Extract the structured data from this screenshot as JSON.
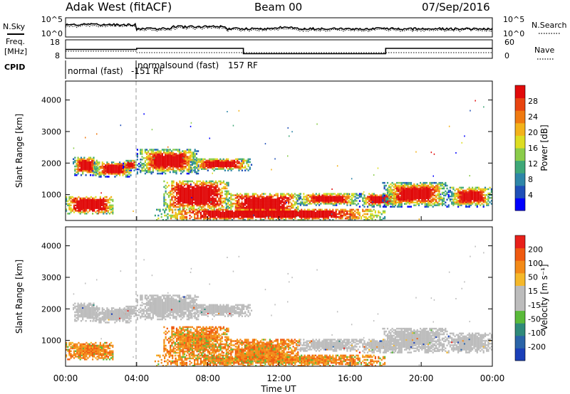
{
  "header": {
    "station": "Adak West (fitACF)",
    "beam": "Beam 00",
    "date": "07/Sep/2016"
  },
  "left_labels": {
    "nsky": "N.Sky",
    "freq_line1": "Freq.",
    "freq_line2": "[MHz]",
    "cpid": "CPID"
  },
  "right_labels": {
    "nsearch": "N.Search",
    "nave": "Nave"
  },
  "cpid_programs": [
    {
      "name": "normal (fast)",
      "code": "-151 RF"
    },
    {
      "name": "normalsound (fast)",
      "code": "157 RF"
    }
  ],
  "chart_data": [
    {
      "type": "line",
      "name": "noise_panel",
      "y_left_ticks": [
        "10^5",
        "10^0"
      ],
      "y_right_ticks": [
        "10^5",
        "10^0"
      ],
      "series": [
        {
          "name": "N.Sky",
          "style": "solid"
        },
        {
          "name": "N.Search",
          "style": "dotted"
        }
      ]
    },
    {
      "type": "line",
      "name": "frequency_panel",
      "y_left_ticks": [
        "18",
        "8"
      ],
      "y_right_ticks": [
        "60",
        "0"
      ],
      "freq_steps": [
        {
          "x": [
            0.0,
            4.0
          ],
          "mhz": 12.8
        },
        {
          "x": [
            4.0,
            10.0
          ],
          "mhz": 13.4
        },
        {
          "x": [
            10.0,
            18.0
          ],
          "mhz": 10.5
        },
        {
          "x": [
            18.0,
            24.0
          ],
          "mhz": 13.4
        }
      ]
    },
    {
      "type": "heatmap",
      "name": "power_panel",
      "ylabel": "Slant Range [km]",
      "y_ticks": [
        1000,
        2000,
        3000,
        4000
      ],
      "ylim": [
        180,
        4600
      ],
      "xlim": [
        0,
        24
      ],
      "colorbar": {
        "label": "Power [dB]",
        "ticks": [
          "28",
          "24",
          "20",
          "16",
          "12",
          "8",
          "4"
        ],
        "colors": [
          "#0000ff",
          "#1f4fb8",
          "#2e86a8",
          "#3fa878",
          "#8acc4a",
          "#dddd22",
          "#f3b21a",
          "#f07a10",
          "#e84410",
          "#e10a0a"
        ]
      }
    },
    {
      "type": "heatmap",
      "name": "velocity_panel",
      "ylabel": "Slant Range [km]",
      "xlabel": "Time UT",
      "y_ticks": [
        1000,
        2000,
        3000,
        4000
      ],
      "ylim": [
        180,
        4600
      ],
      "xlim": [
        0,
        24
      ],
      "x_ticks": [
        "00:00",
        "04:00",
        "08:00",
        "12:00",
        "16:00",
        "20:00",
        "00:00"
      ],
      "colorbar": {
        "label": "Velocity [m s⁻¹]",
        "ticks": [
          "200",
          "100",
          "50",
          "15",
          "-15",
          "-50",
          "-100",
          "-200"
        ],
        "colors": [
          "#1a3fb8",
          "#2a64a8",
          "#2f8a7a",
          "#5aba3a",
          "#bcbcbc",
          "#bcbcbc",
          "#f5b82a",
          "#f38a18",
          "#ef5a10",
          "#e8201a"
        ]
      }
    }
  ],
  "echo_regions": [
    {
      "x": [
        0.0,
        2.7
      ],
      "r": [
        380,
        950
      ]
    },
    {
      "x": [
        0.4,
        1.8
      ],
      "r": [
        1600,
        2200
      ]
    },
    {
      "x": [
        1.5,
        3.8
      ],
      "r": [
        1550,
        2050
      ]
    },
    {
      "x": [
        3.2,
        4.0
      ],
      "r": [
        1750,
        2100
      ]
    },
    {
      "x": [
        4.0,
        7.5
      ],
      "r": [
        1650,
        2450
      ]
    },
    {
      "x": [
        7.0,
        10.5
      ],
      "r": [
        1750,
        2150
      ]
    },
    {
      "x": [
        5.5,
        9.2
      ],
      "r": [
        500,
        1450
      ]
    },
    {
      "x": [
        9.0,
        13.2
      ],
      "r": [
        300,
        1050
      ]
    },
    {
      "x": [
        13.0,
        16.5
      ],
      "r": [
        650,
        1050
      ]
    },
    {
      "x": [
        16.5,
        18.8
      ],
      "r": [
        600,
        1050
      ]
    },
    {
      "x": [
        17.8,
        21.5
      ],
      "r": [
        600,
        1400
      ]
    },
    {
      "x": [
        21.5,
        24.0
      ],
      "r": [
        600,
        1250
      ]
    },
    {
      "x": [
        5.0,
        18.0
      ],
      "r": [
        180,
        550
      ]
    }
  ]
}
